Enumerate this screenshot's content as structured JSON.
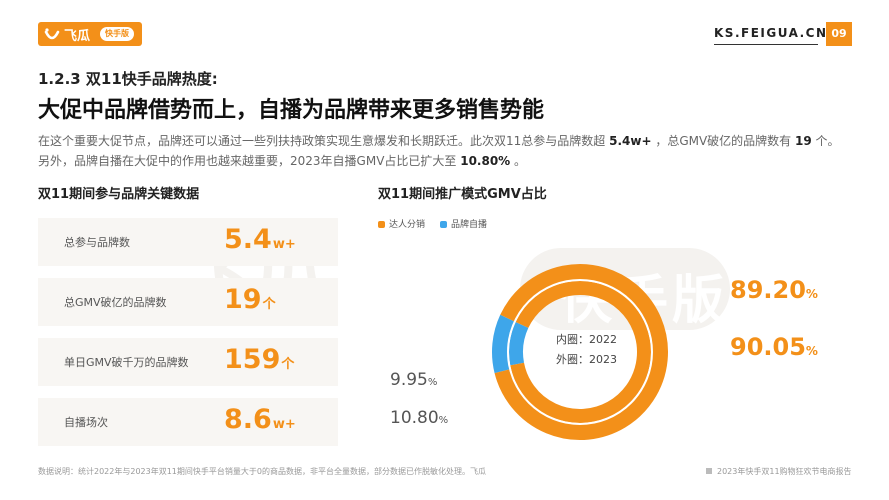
{
  "header": {
    "logo_text": "飞瓜",
    "logo_badge": "快手版",
    "site": "KS.FEIGUA.CN",
    "page_number": "09"
  },
  "subtitle": "1.2.3 双11快手品牌热度:",
  "title": "大促中品牌借势而上，自播为品牌带来更多销售势能",
  "paragraph": {
    "p1": "在这个重要大促节点，品牌还可以通过一些列扶持政策实现生意爆发和长期跃迁。此次双11总参与品牌数超 ",
    "v1": "5.4w+",
    "p2": " ，总GMV破亿的品牌数有 ",
    "v2": "19",
    "p3": " 个。",
    "p4": "另外，品牌自播在大促中的作用也越来越重要，2023年自播GMV占比已扩大至 ",
    "v3": "10.80%",
    "p5": " 。"
  },
  "watermark": {
    "main": "飞瓜",
    "badge": "快手版"
  },
  "left_section": {
    "title": "双11期间参与品牌关键数据",
    "stats": [
      {
        "label": "总参与品牌数",
        "value": "5.4",
        "unit": "w+"
      },
      {
        "label": "总GMV破亿的品牌数",
        "value": "19",
        "unit": "个"
      },
      {
        "label": "单日GMV破千万的品牌数",
        "value": "159",
        "unit": "个"
      },
      {
        "label": "自播场次",
        "value": "8.6",
        "unit": "w+"
      }
    ]
  },
  "right_section": {
    "title": "双11期间推广模式GMV占比"
  },
  "chart_data": {
    "type": "pie",
    "variant": "double-donut",
    "legend": [
      "达人分销",
      "品牌自播"
    ],
    "colors": {
      "达人分销": "#f39019",
      "品牌自播": "#3ea6ea"
    },
    "inner_label": "内圈：2022",
    "outer_label": "外圈：2023",
    "rings": [
      {
        "ring": "inner",
        "year": "2022",
        "values": {
          "达人分销": 90.05,
          "品牌自播": 9.95
        }
      },
      {
        "ring": "outer",
        "year": "2023",
        "values": {
          "达人分销": 89.2,
          "品牌自播": 10.8
        }
      }
    ],
    "labels": {
      "outer_main": {
        "value": "89.20",
        "unit": "%"
      },
      "inner_main": {
        "value": "90.05",
        "unit": "%"
      },
      "inner_self": {
        "value": "9.95",
        "unit": "%"
      },
      "outer_self": {
        "value": "10.80",
        "unit": "%"
      }
    }
  },
  "footer": {
    "note": "数据说明：统计2022年与2023年双11期间快手平台销量大于0的商品数据，非平台全量数据，部分数据已作脱敏化处理。飞瓜",
    "report": "2023年快手双11购物狂欢节电商报告"
  }
}
